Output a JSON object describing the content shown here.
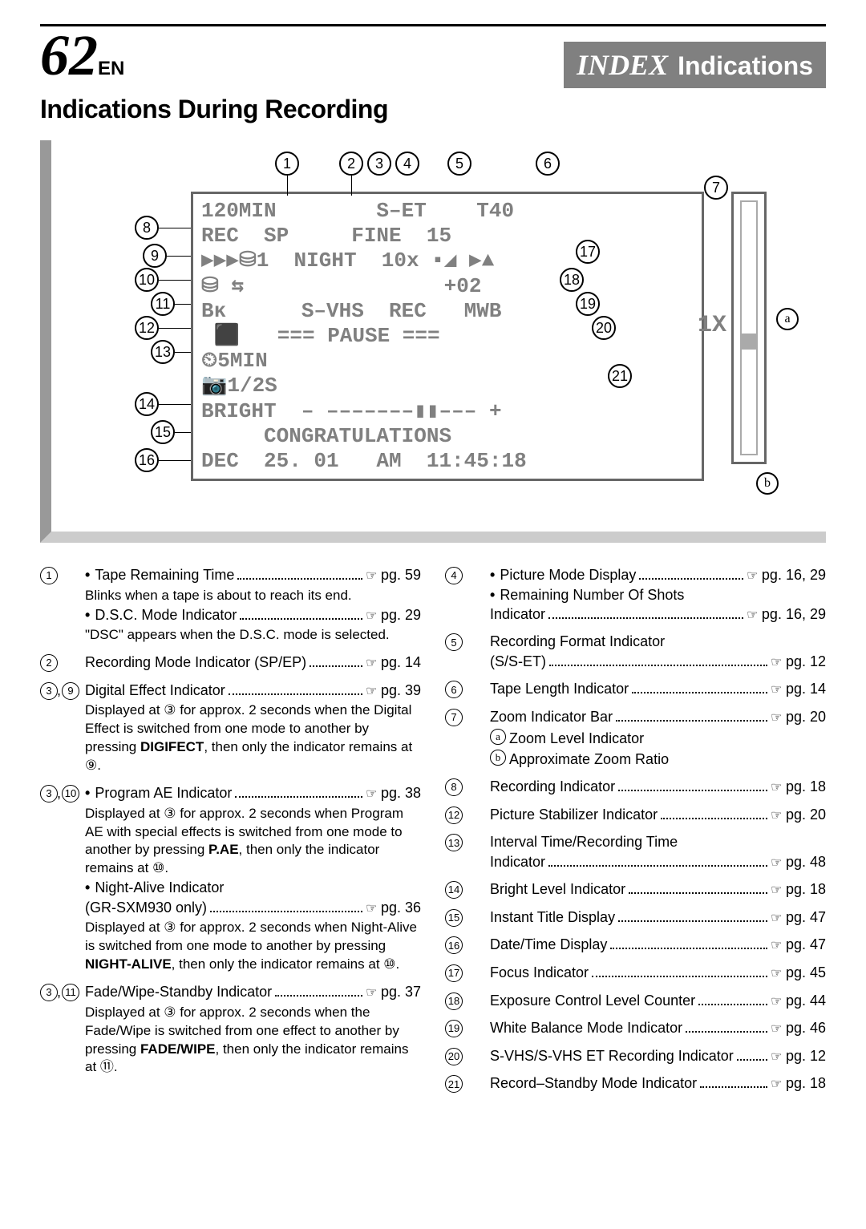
{
  "page_number": "62",
  "page_suffix": "EN",
  "header_index": "INDEX",
  "header_section": "Indications",
  "subtitle": "Indications During Recording",
  "display": {
    "lines": [
      "120MIN        S–ET    T40",
      "REC  SP     FINE  15",
      "▶▶▶⛁1  NIGHT  10x ▪◢ ▶▲",
      "⛁ ⇆                +02",
      "Bᴋ      S–VHS  REC   MWB",
      " ⬛   === PAUSE ===",
      "⏲5MIN",
      "📷1/2S",
      "BRIGHT  – –––––––▮▮––– +",
      "     CONGRATULATIONS",
      "DEC  25. 01   AM  11:45:18"
    ],
    "zoom_label": "1X"
  },
  "callouts_top": [
    "1",
    "2",
    "3",
    "4",
    "5",
    "6",
    "7"
  ],
  "callouts_left": [
    "8",
    "9",
    "10",
    "11",
    "12",
    "13",
    "14",
    "15",
    "16"
  ],
  "callouts_right": [
    "17",
    "18",
    "19",
    "20",
    "21"
  ],
  "letter_callouts": [
    "a",
    "b"
  ],
  "left_items": [
    {
      "nums": [
        "1"
      ],
      "rows": [
        {
          "bullet": true,
          "label": "Tape Remaining Time",
          "ref": "pg. 59"
        }
      ],
      "notes": [
        "Blinks when a tape is about to reach its end."
      ],
      "extra_rows": [
        {
          "bullet": true,
          "label": "D.S.C. Mode Indicator",
          "ref": "pg. 29"
        }
      ],
      "extra_notes": [
        "\"DSC\" appears when the D.S.C. mode is selected."
      ]
    },
    {
      "nums": [
        "2"
      ],
      "rows": [
        {
          "label": "Recording Mode Indicator (SP/EP)",
          "ref": "pg. 14"
        }
      ]
    },
    {
      "nums": [
        "3",
        "9"
      ],
      "rows": [
        {
          "label": "Digital Effect Indicator",
          "ref": "pg. 39"
        }
      ],
      "notes": [
        "Displayed at ③ for approx. 2 seconds when the Digital Effect is switched from one mode to another by pressing <b>DIGIFECT</b>, then only the indicator remains at ⑨."
      ]
    },
    {
      "nums": [
        "3",
        "10"
      ],
      "rows": [
        {
          "bullet": true,
          "label": "Program AE Indicator",
          "ref": "pg. 38"
        }
      ],
      "notes": [
        "Displayed at ③ for approx. 2 seconds when Program AE with special effects is switched from one mode to another by pressing <b>P.AE</b>, then only the indicator remains at ⑩."
      ],
      "extra_rows": [
        {
          "bullet": true,
          "label": "Night-Alive Indicator"
        },
        {
          "label": "(GR-SXM930 only)",
          "ref": "pg. 36"
        }
      ],
      "extra_notes": [
        "Displayed at ③ for approx. 2 seconds when Night-Alive is switched from one mode to another by pressing <b>NIGHT-ALIVE</b>, then only the indicator remains at ⑩."
      ]
    },
    {
      "nums": [
        "3",
        "11"
      ],
      "rows": [
        {
          "label": "Fade/Wipe-Standby Indicator",
          "ref": "pg. 37"
        }
      ],
      "notes": [
        "Displayed at ③ for approx. 2 seconds when the Fade/Wipe is switched from one effect to another by pressing <b>FADE/WIPE</b>, then only the indicator remains at ⑪."
      ]
    }
  ],
  "right_items": [
    {
      "nums": [
        "4"
      ],
      "rows": [
        {
          "bullet": true,
          "label": "Picture Mode Display",
          "ref": "pg. 16, 29"
        },
        {
          "bullet": true,
          "label": "Remaining Number Of Shots"
        },
        {
          "label": "Indicator",
          "ref": "pg. 16, 29"
        }
      ]
    },
    {
      "nums": [
        "5"
      ],
      "rows": [
        {
          "label": "Recording Format Indicator"
        },
        {
          "label": "(S/S-ET)",
          "ref": "pg. 12"
        }
      ]
    },
    {
      "nums": [
        "6"
      ],
      "rows": [
        {
          "label": "Tape Length Indicator",
          "ref": "pg. 14"
        }
      ]
    },
    {
      "nums": [
        "7"
      ],
      "rows": [
        {
          "label": "Zoom Indicator Bar",
          "ref": "pg. 20"
        }
      ],
      "subs": [
        {
          "letter": "a",
          "text": "Zoom Level Indicator"
        },
        {
          "letter": "b",
          "text": "Approximate Zoom Ratio"
        }
      ]
    },
    {
      "nums": [
        "8"
      ],
      "rows": [
        {
          "label": "Recording Indicator",
          "ref": "pg. 18"
        }
      ]
    },
    {
      "nums": [
        "12"
      ],
      "rows": [
        {
          "label": "Picture Stabilizer Indicator",
          "ref": "pg. 20"
        }
      ]
    },
    {
      "nums": [
        "13"
      ],
      "rows": [
        {
          "label": "Interval Time/Recording Time"
        },
        {
          "label": "Indicator",
          "ref": "pg. 48"
        }
      ]
    },
    {
      "nums": [
        "14"
      ],
      "rows": [
        {
          "label": "Bright Level Indicator",
          "ref": "pg. 18"
        }
      ]
    },
    {
      "nums": [
        "15"
      ],
      "rows": [
        {
          "label": "Instant Title Display",
          "ref": "pg. 47"
        }
      ]
    },
    {
      "nums": [
        "16"
      ],
      "rows": [
        {
          "label": "Date/Time Display",
          "ref": "pg. 47"
        }
      ]
    },
    {
      "nums": [
        "17"
      ],
      "rows": [
        {
          "label": "Focus Indicator",
          "ref": "pg. 45"
        }
      ]
    },
    {
      "nums": [
        "18"
      ],
      "rows": [
        {
          "label": "Exposure Control Level Counter",
          "ref": "pg. 44"
        }
      ]
    },
    {
      "nums": [
        "19"
      ],
      "rows": [
        {
          "label": "White Balance Mode Indicator",
          "ref": "pg. 46"
        }
      ]
    },
    {
      "nums": [
        "20"
      ],
      "rows": [
        {
          "label": "S-VHS/S-VHS ET Recording Indicator",
          "ref": "pg. 12"
        }
      ]
    },
    {
      "nums": [
        "21"
      ],
      "rows": [
        {
          "label": "Record–Standby Mode Indicator",
          "ref": "pg. 18"
        }
      ]
    }
  ]
}
